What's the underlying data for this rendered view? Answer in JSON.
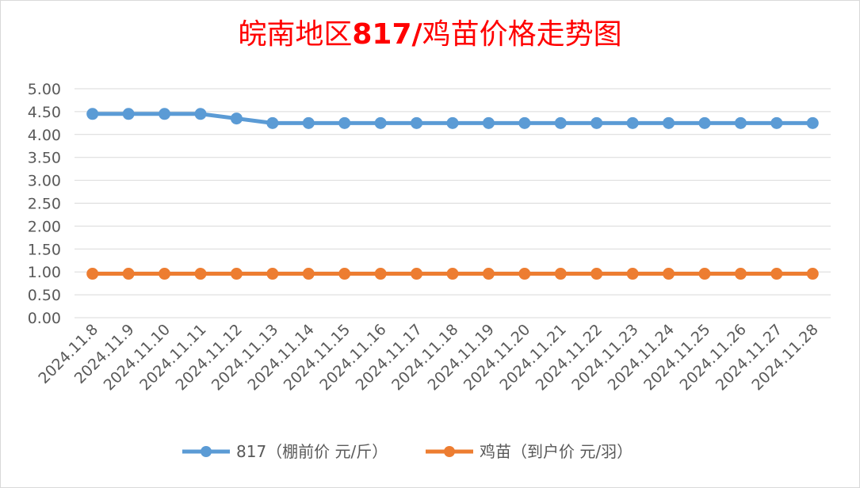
{
  "title": {
    "prefix": "皖南地区",
    "code": "817/",
    "suffix": "鸡苗价格走势图"
  },
  "colors": {
    "title": "#ff0000",
    "series_817": "#5b9bd5",
    "series_chick": "#ed7d31",
    "grid": "#d9d9d9",
    "axis_text": "#595959"
  },
  "chart_data": {
    "type": "line",
    "title": "皖南地区817/鸡苗价格走势图",
    "x": [
      "2024.11.8",
      "2024.11.9",
      "2024.11.10",
      "2024.11.11",
      "2024.11.12",
      "2024.11.13",
      "2024.11.14",
      "2024.11.15",
      "2024.11.16",
      "2024.11.17",
      "2024.11.18",
      "2024.11.19",
      "2024.11.20",
      "2024.11.21",
      "2024.11.22",
      "2024.11.23",
      "2024.11.24",
      "2024.11.25",
      "2024.11.26",
      "2024.11.27",
      "2024.11.28"
    ],
    "ylim": [
      0,
      5
    ],
    "yticks": [
      "0.00",
      "0.50",
      "1.00",
      "1.50",
      "2.00",
      "2.50",
      "3.00",
      "3.50",
      "4.00",
      "4.50",
      "5.00"
    ],
    "grid": true,
    "legend_position": "bottom",
    "series": [
      {
        "name": "817（棚前价 元/斤）",
        "values": [
          4.45,
          4.45,
          4.45,
          4.45,
          4.35,
          4.25,
          4.25,
          4.25,
          4.25,
          4.25,
          4.25,
          4.25,
          4.25,
          4.25,
          4.25,
          4.25,
          4.25,
          4.25,
          4.25,
          4.25,
          4.25
        ]
      },
      {
        "name": "鸡苗（到户价 元/羽）",
        "values": [
          0.96,
          0.96,
          0.96,
          0.96,
          0.96,
          0.96,
          0.96,
          0.96,
          0.96,
          0.96,
          0.96,
          0.96,
          0.96,
          0.96,
          0.96,
          0.96,
          0.96,
          0.96,
          0.96,
          0.96,
          0.96
        ]
      }
    ]
  }
}
